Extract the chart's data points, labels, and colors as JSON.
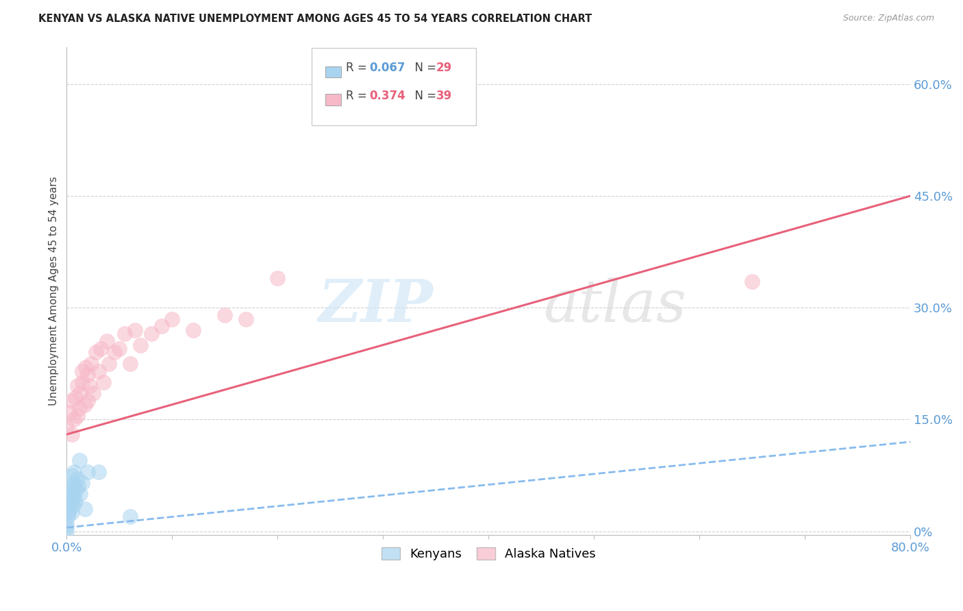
{
  "title": "KENYAN VS ALASKA NATIVE UNEMPLOYMENT AMONG AGES 45 TO 54 YEARS CORRELATION CHART",
  "source": "Source: ZipAtlas.com",
  "ylabel": "Unemployment Among Ages 45 to 54 years",
  "xlim": [
    0.0,
    0.8
  ],
  "ylim": [
    -0.005,
    0.65
  ],
  "xticks": [
    0.0,
    0.1,
    0.2,
    0.3,
    0.4,
    0.5,
    0.6,
    0.7,
    0.8
  ],
  "yticks_right": [
    0.0,
    0.15,
    0.3,
    0.45,
    0.6
  ],
  "ytick_labels_right": [
    "0%",
    "15.0%",
    "30.0%",
    "45.0%",
    "60.0%"
  ],
  "grid_color": "#d0d0d0",
  "background_color": "#ffffff",
  "kenyan_color": "#a8d4f0",
  "alaska_color": "#f7b8c8",
  "kenyan_line_color": "#88bbee",
  "alaska_line_color": "#e8607a",
  "kenyan_R": 0.067,
  "kenyan_N": 29,
  "alaska_R": 0.374,
  "alaska_N": 39,
  "alaska_line_y0": 0.13,
  "alaska_line_y1": 0.45,
  "kenyan_line_y0": 0.005,
  "kenyan_line_y1": 0.12,
  "kenyan_x": [
    0.0,
    0.0,
    0.0,
    0.001,
    0.001,
    0.002,
    0.002,
    0.003,
    0.003,
    0.004,
    0.004,
    0.005,
    0.005,
    0.005,
    0.006,
    0.006,
    0.007,
    0.007,
    0.008,
    0.009,
    0.01,
    0.011,
    0.012,
    0.013,
    0.015,
    0.017,
    0.02,
    0.03,
    0.06
  ],
  "kenyan_y": [
    0.0,
    0.005,
    0.01,
    0.02,
    0.035,
    0.025,
    0.045,
    0.03,
    0.055,
    0.04,
    0.06,
    0.025,
    0.05,
    0.075,
    0.035,
    0.065,
    0.045,
    0.08,
    0.04,
    0.055,
    0.07,
    0.06,
    0.095,
    0.05,
    0.065,
    0.03,
    0.08,
    0.08,
    0.02
  ],
  "alaska_x": [
    0.0,
    0.003,
    0.005,
    0.005,
    0.007,
    0.008,
    0.01,
    0.01,
    0.012,
    0.013,
    0.015,
    0.015,
    0.017,
    0.018,
    0.02,
    0.02,
    0.022,
    0.023,
    0.025,
    0.028,
    0.03,
    0.032,
    0.035,
    0.038,
    0.04,
    0.045,
    0.05,
    0.055,
    0.06,
    0.065,
    0.07,
    0.08,
    0.09,
    0.1,
    0.12,
    0.15,
    0.17,
    0.2,
    0.65
  ],
  "alaska_y": [
    0.14,
    0.16,
    0.13,
    0.175,
    0.15,
    0.18,
    0.155,
    0.195,
    0.165,
    0.185,
    0.2,
    0.215,
    0.17,
    0.22,
    0.175,
    0.21,
    0.195,
    0.225,
    0.185,
    0.24,
    0.215,
    0.245,
    0.2,
    0.255,
    0.225,
    0.24,
    0.245,
    0.265,
    0.225,
    0.27,
    0.25,
    0.265,
    0.275,
    0.285,
    0.27,
    0.29,
    0.285,
    0.34,
    0.335
  ]
}
